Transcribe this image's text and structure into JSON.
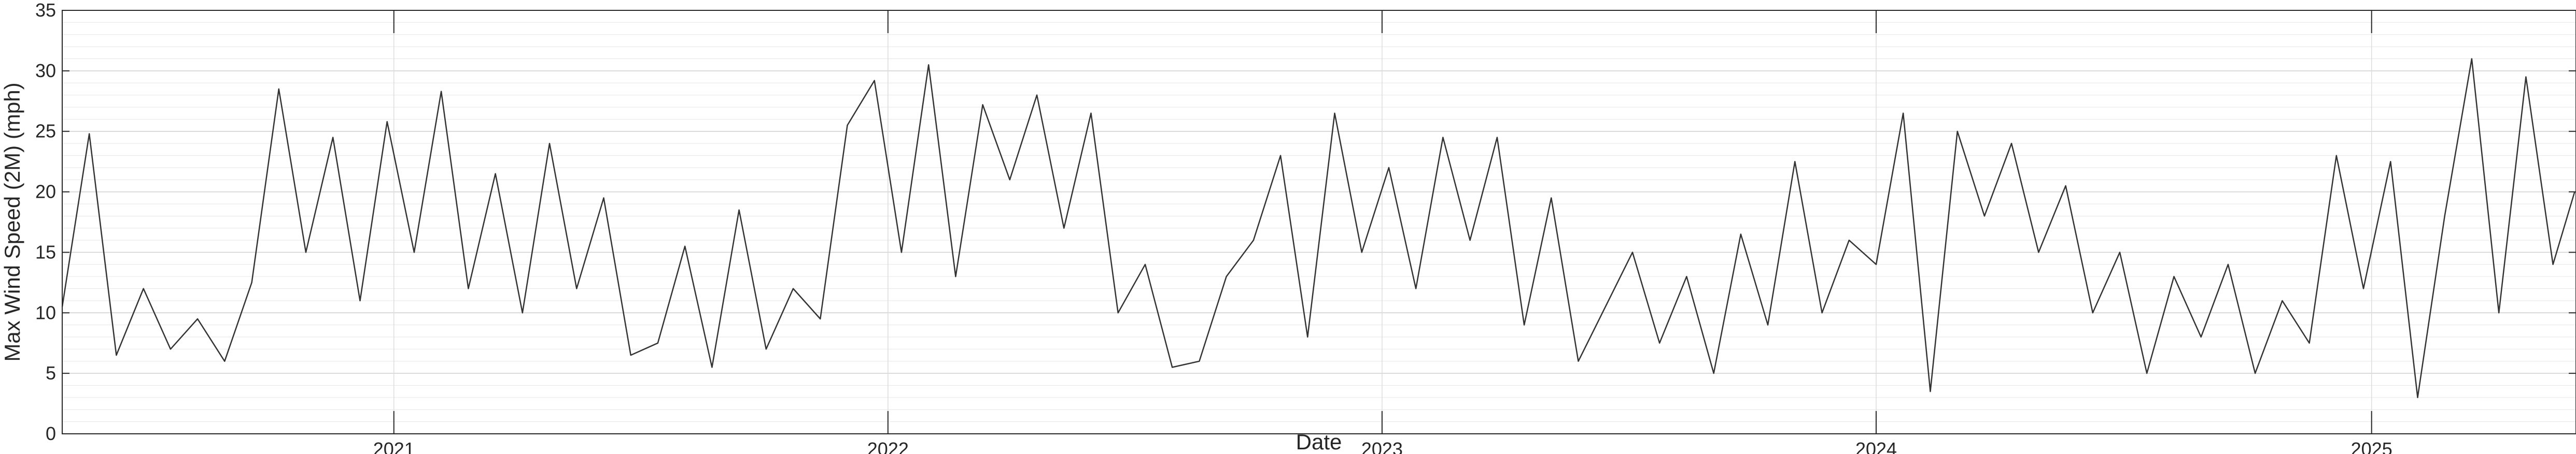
{
  "chart_data": {
    "type": "line",
    "xlabel": "Date",
    "ylabel": "Max Wind Speed (2M) (mph)",
    "ylim": [
      0,
      35
    ],
    "xlim": [
      "2020-05-01",
      "2025-06-01"
    ],
    "yticks": [
      0,
      5,
      10,
      15,
      20,
      25,
      30,
      35
    ],
    "yminor_step": 1,
    "xticks": [
      {
        "date": "2021-01-01",
        "label": "2021"
      },
      {
        "date": "2022-01-01",
        "label": "2022"
      },
      {
        "date": "2023-01-01",
        "label": "2023"
      },
      {
        "date": "2024-01-01",
        "label": "2024"
      },
      {
        "date": "2025-01-01",
        "label": "2025"
      }
    ],
    "grid": true,
    "line_color": "#333333",
    "series": [
      {
        "x": [
          "2020-05-01",
          "2020-05-21",
          "2020-06-10",
          "2020-06-30",
          "2020-07-20",
          "2020-08-09",
          "2020-08-29",
          "2020-09-18",
          "2020-10-08",
          "2020-10-28",
          "2020-11-17",
          "2020-12-07",
          "2020-12-27",
          "2021-01-16",
          "2021-02-05",
          "2021-02-25",
          "2021-03-17",
          "2021-04-06",
          "2021-04-26",
          "2021-05-16",
          "2021-06-05",
          "2021-06-25",
          "2021-07-15",
          "2021-08-04",
          "2021-08-24",
          "2021-09-13",
          "2021-10-03",
          "2021-10-23",
          "2021-11-12",
          "2021-12-02",
          "2021-12-22",
          "2022-01-11",
          "2022-01-31",
          "2022-02-20",
          "2022-03-12",
          "2022-04-01",
          "2022-04-21",
          "2022-05-11",
          "2022-05-31",
          "2022-06-20",
          "2022-07-10",
          "2022-07-30",
          "2022-08-19",
          "2022-09-08",
          "2022-09-28",
          "2022-10-18",
          "2022-11-07",
          "2022-11-27",
          "2022-12-17",
          "2023-01-06",
          "2023-01-26",
          "2023-02-15",
          "2023-03-07",
          "2023-03-27",
          "2023-04-16",
          "2023-05-06",
          "2023-05-26",
          "2023-06-15",
          "2023-07-05",
          "2023-07-25",
          "2023-08-14",
          "2023-09-03",
          "2023-09-23",
          "2023-10-13",
          "2023-11-02",
          "2023-11-22",
          "2023-12-12",
          "2024-01-01",
          "2024-01-21",
          "2024-02-10",
          "2024-03-01",
          "2024-03-21",
          "2024-04-10",
          "2024-04-30",
          "2024-05-20",
          "2024-06-09",
          "2024-06-29",
          "2024-07-19",
          "2024-08-08",
          "2024-08-28",
          "2024-09-17",
          "2024-10-07",
          "2024-10-27",
          "2024-11-16",
          "2024-12-06",
          "2024-12-26",
          "2025-01-15",
          "2025-02-04",
          "2025-02-24",
          "2025-03-16",
          "2025-04-05",
          "2025-04-25",
          "2025-05-15",
          "2025-05-31"
        ],
        "y": [
          10.5,
          24.8,
          6.5,
          12.0,
          7.0,
          9.5,
          6.0,
          12.5,
          28.5,
          15.0,
          24.5,
          11.0,
          25.8,
          15.0,
          28.3,
          12.0,
          21.5,
          10.0,
          24.0,
          12.0,
          19.5,
          6.5,
          7.5,
          15.5,
          5.5,
          18.5,
          7.0,
          12.0,
          9.5,
          25.5,
          29.2,
          15.0,
          30.5,
          13.0,
          27.2,
          21.0,
          28.0,
          17.0,
          26.5,
          10.0,
          14.0,
          5.5,
          6.0,
          13.0,
          16.0,
          23.0,
          8.0,
          26.5,
          15.0,
          22.0,
          12.0,
          24.5,
          16.0,
          24.5,
          9.0,
          19.5,
          6.0,
          10.5,
          15.0,
          7.5,
          13.0,
          5.0,
          16.5,
          9.0,
          22.5,
          10.0,
          16.0,
          14.0,
          26.5,
          3.5,
          25.0,
          18.0,
          24.0,
          15.0,
          20.5,
          10.0,
          15.0,
          5.0,
          13.0,
          8.0,
          14.0,
          5.0,
          11.0,
          7.5,
          23.0,
          12.0,
          22.5,
          3.0,
          18.0,
          31.0,
          10.0,
          29.5,
          14.0,
          20.0
        ]
      }
    ]
  }
}
